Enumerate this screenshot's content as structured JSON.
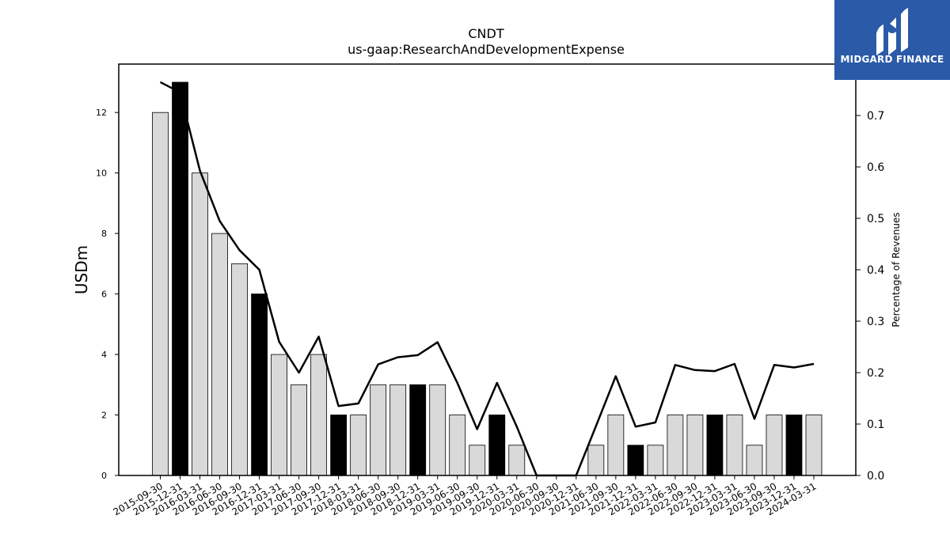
{
  "chart_data": {
    "type": "bar",
    "title": "CNDT",
    "subtitle": "us-gaap:ResearchAndDevelopmentExpense",
    "ylabel": "USDm",
    "y2label": "Percentage of Revenues",
    "ylim": [
      0,
      13.6
    ],
    "y2lim": [
      0,
      0.8
    ],
    "yticks": [
      0,
      2,
      4,
      6,
      8,
      10,
      12
    ],
    "y2ticks": [
      0.0,
      0.1,
      0.2,
      0.3,
      0.4,
      0.5,
      0.6,
      0.7
    ],
    "categories": [
      "2015-09-30",
      "2015-12-31",
      "2016-03-31",
      "2016-06-30",
      "2016-09-30",
      "2016-12-31",
      "2017-03-31",
      "2017-06-30",
      "2017-09-30",
      "2017-12-31",
      "2018-03-31",
      "2018-06-30",
      "2018-09-30",
      "2018-12-31",
      "2019-03-31",
      "2019-06-30",
      "2019-09-30",
      "2019-12-31",
      "2020-03-31",
      "2020-06-30",
      "2020-09-30",
      "2020-12-31",
      "2021-06-30",
      "2021-09-30",
      "2021-12-31",
      "2022-03-31",
      "2022-06-30",
      "2022-09-30",
      "2022-12-31",
      "2023-03-31",
      "2023-06-30",
      "2023-09-30",
      "2023-12-31",
      "2024-03-31"
    ],
    "series": [
      {
        "type": "bar",
        "values": [
          12,
          13,
          10,
          8,
          7,
          6,
          4,
          3,
          4,
          2,
          2,
          3,
          3,
          3,
          3,
          2,
          1,
          2,
          1,
          0,
          0,
          0,
          1,
          2,
          1,
          1,
          2,
          2,
          2,
          2,
          1,
          2,
          2,
          2
        ],
        "highlight": [
          false,
          true,
          false,
          false,
          false,
          true,
          false,
          false,
          false,
          true,
          false,
          false,
          false,
          true,
          false,
          false,
          false,
          true,
          false,
          false,
          false,
          false,
          false,
          false,
          true,
          false,
          false,
          false,
          true,
          false,
          false,
          false,
          true,
          false
        ],
        "color": "#d9d9d9",
        "highlight_color": "#000000"
      },
      {
        "type": "line",
        "axis": "right",
        "values": [
          0.765,
          0.745,
          0.593,
          0.495,
          0.438,
          0.4,
          0.26,
          0.2,
          0.27,
          0.135,
          0.14,
          0.216,
          0.23,
          0.234,
          0.259,
          0.18,
          0.09,
          0.18,
          0.095,
          0.0,
          0.0,
          0.0,
          0.096,
          0.193,
          0.095,
          0.103,
          0.215,
          0.205,
          0.203,
          0.217,
          0.11,
          0.215,
          0.21,
          0.217
        ],
        "color": "#000000"
      }
    ]
  },
  "logo": {
    "text": "MIDGARD FINANCE",
    "color": "#2a5aa8"
  }
}
